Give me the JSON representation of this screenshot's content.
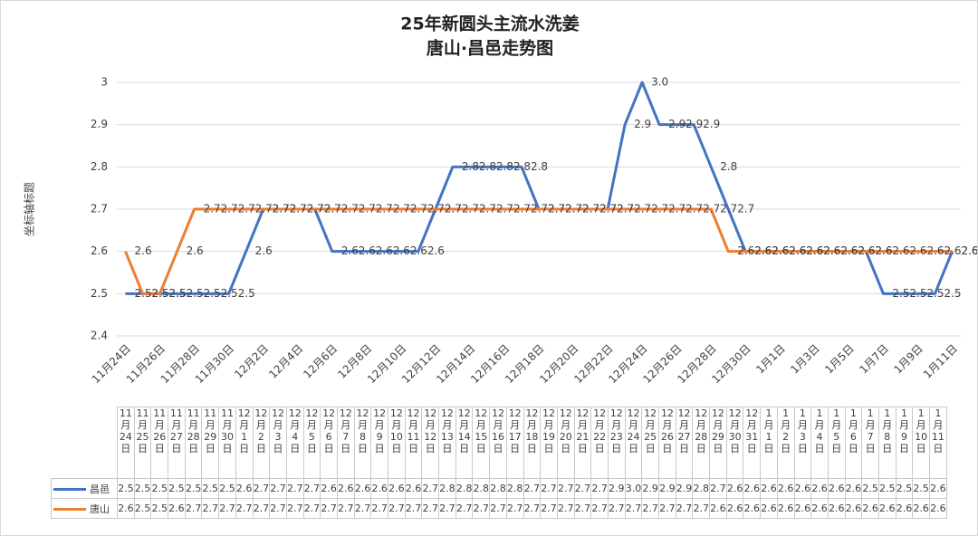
{
  "chart_data": {
    "type": "line",
    "title_lines": [
      "25年新圆头主流水洗姜",
      "唐山·昌邑走势图"
    ],
    "y_axis_label": "坐标轴标题",
    "categories": [
      "11月24日",
      "11月25日",
      "11月26日",
      "11月27日",
      "11月28日",
      "11月29日",
      "11月30日",
      "12月1日",
      "12月2日",
      "12月3日",
      "12月4日",
      "12月5日",
      "12月6日",
      "12月7日",
      "12月8日",
      "12月9日",
      "12月10日",
      "12月11日",
      "12月12日",
      "12月13日",
      "12月14日",
      "12月15日",
      "12月16日",
      "12月17日",
      "12月18日",
      "12月19日",
      "12月20日",
      "12月21日",
      "12月22日",
      "12月23日",
      "12月24日",
      "12月25日",
      "12月26日",
      "12月27日",
      "12月28日",
      "12月29日",
      "12月30日",
      "12月31日",
      "1月1日",
      "1月2日",
      "1月3日",
      "1月4日",
      "1月5日",
      "1月6日",
      "1月7日",
      "1月8日",
      "1月9日",
      "1月10日",
      "1月11日"
    ],
    "series": [
      {
        "name": "昌邑",
        "color": "#4472c4",
        "values": [
          2.5,
          2.5,
          2.5,
          2.5,
          2.5,
          2.5,
          2.5,
          2.6,
          2.7,
          2.7,
          2.7,
          2.7,
          2.6,
          2.6,
          2.6,
          2.6,
          2.6,
          2.6,
          2.7,
          2.8,
          2.8,
          2.8,
          2.8,
          2.8,
          2.7,
          2.7,
          2.7,
          2.7,
          2.7,
          2.9,
          3,
          2.9,
          2.9,
          2.9,
          2.8,
          2.7,
          2.6,
          2.6,
          2.6,
          2.6,
          2.6,
          2.6,
          2.6,
          2.6,
          2.5,
          2.5,
          2.5,
          2.5,
          2.6
        ],
        "value_labels": [
          "2.5",
          "2.5",
          "2.5",
          "2.5",
          "2.5",
          "2.5",
          "2.5",
          "2.6",
          "2.7",
          "2.7",
          "2.7",
          "2.7",
          "2.6",
          "2.6",
          "2.6",
          "2.6",
          "2.6",
          "2.6",
          "2.7",
          "2.8",
          "2.8",
          "2.8",
          "2.8",
          "2.8",
          "2.7",
          "2.7",
          "2.7",
          "2.7",
          "2.7",
          "2.9",
          "3.0",
          "2.9",
          "2.9",
          "2.9",
          "2.8",
          "2.7",
          "2.6",
          "2.6",
          "2.6",
          "2.6",
          "2.6",
          "2.6",
          "2.6",
          "2.6",
          "2.5",
          "2.5",
          "2.5",
          "2.5",
          "2.6"
        ]
      },
      {
        "name": "唐山",
        "color": "#ed7d31",
        "values": [
          2.6,
          2.5,
          2.5,
          2.6,
          2.7,
          2.7,
          2.7,
          2.7,
          2.7,
          2.7,
          2.7,
          2.7,
          2.7,
          2.7,
          2.7,
          2.7,
          2.7,
          2.7,
          2.7,
          2.7,
          2.7,
          2.7,
          2.7,
          2.7,
          2.7,
          2.7,
          2.7,
          2.7,
          2.7,
          2.7,
          2.7,
          2.7,
          2.7,
          2.7,
          2.7,
          2.6,
          2.6,
          2.6,
          2.6,
          2.6,
          2.6,
          2.6,
          2.6,
          2.6,
          2.6,
          2.6,
          2.6,
          2.6,
          2.6
        ]
      }
    ],
    "ylim": [
      2.4,
      3
    ],
    "yticks": [
      2.4,
      2.5,
      2.6,
      2.7,
      2.8,
      2.9,
      3
    ],
    "grid": true
  }
}
